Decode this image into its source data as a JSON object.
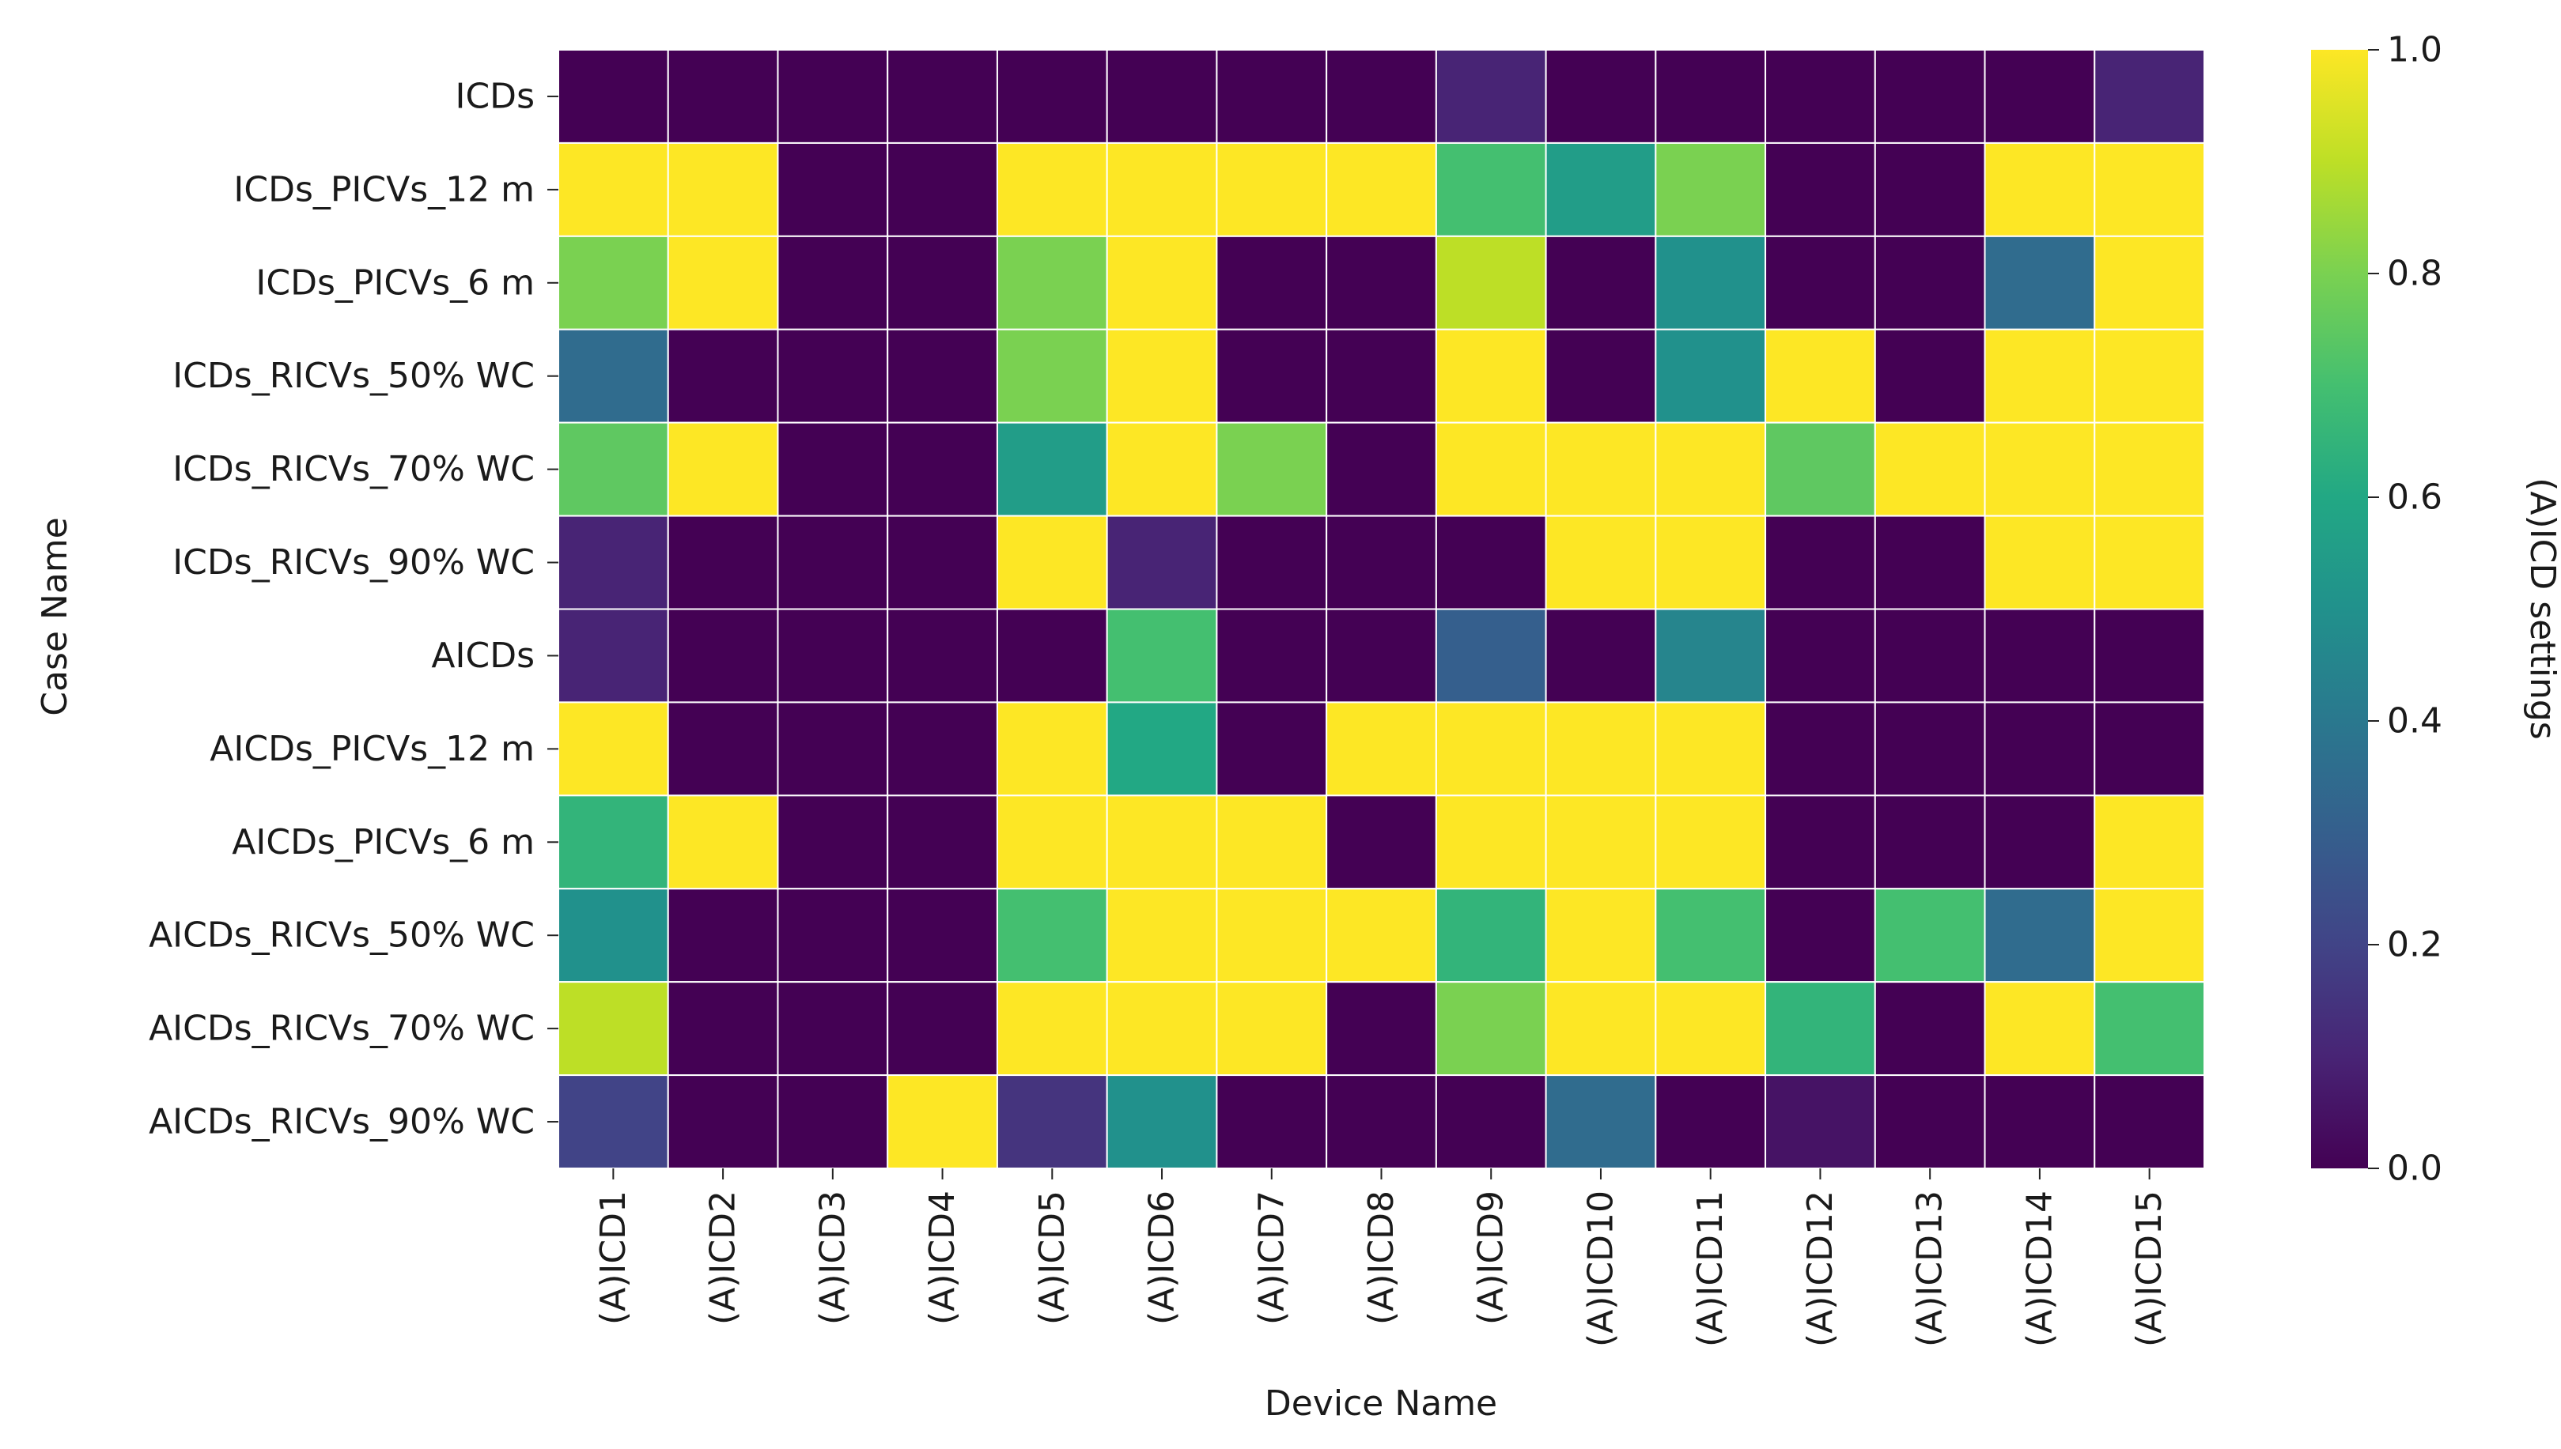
{
  "chart_data": {
    "type": "heatmap",
    "title": "",
    "xlabel": "Device Name",
    "ylabel": "Case Name",
    "x_categories": [
      "(A)ICD1",
      "(A)ICD2",
      "(A)ICD3",
      "(A)ICD4",
      "(A)ICD5",
      "(A)ICD6",
      "(A)ICD7",
      "(A)ICD8",
      "(A)ICD9",
      "(A)ICD10",
      "(A)ICD11",
      "(A)ICD12",
      "(A)ICD13",
      "(A)ICD14",
      "(A)ICD15"
    ],
    "y_categories": [
      "ICDs",
      "ICDs_PICVs_12 m",
      "ICDs_PICVs_6 m",
      "ICDs_RICVs_50% WC",
      "ICDs_RICVs_70% WC",
      "ICDs_RICVs_90% WC",
      "AICDs",
      "AICDs_PICVs_12 m",
      "AICDs_PICVs_6 m",
      "AICDs_RICVs_50% WC",
      "AICDs_RICVs_70% WC",
      "AICDs_RICVs_90% WC"
    ],
    "values": [
      [
        0,
        0,
        0,
        0,
        0,
        0,
        0,
        0,
        0.1,
        0,
        0,
        0,
        0,
        0,
        0.1
      ],
      [
        1,
        1,
        0,
        0,
        1,
        1,
        1,
        1,
        0.7,
        0.55,
        0.8,
        0,
        0,
        1,
        1
      ],
      [
        0.8,
        1,
        0,
        0,
        0.8,
        1,
        0,
        0,
        0.9,
        0,
        0.5,
        0,
        0,
        0.35,
        1
      ],
      [
        0.35,
        0,
        0,
        0,
        0.8,
        1,
        0,
        0,
        1,
        0,
        0.5,
        1,
        0,
        1,
        1
      ],
      [
        0.75,
        1,
        0,
        0,
        0.55,
        1,
        0.8,
        0,
        1,
        1,
        1,
        0.75,
        1,
        1,
        1
      ],
      [
        0.1,
        0,
        0,
        0,
        1,
        0.1,
        0,
        0,
        0,
        1,
        1,
        0,
        0,
        1,
        1
      ],
      [
        0.1,
        0,
        0,
        0,
        0,
        0.7,
        0,
        0,
        0.3,
        0,
        0.45,
        0,
        0,
        0,
        0
      ],
      [
        1,
        0,
        0,
        0,
        1,
        0.6,
        0,
        1,
        1,
        1,
        1,
        0,
        0,
        0,
        0
      ],
      [
        0.65,
        1,
        0,
        0,
        1,
        1,
        1,
        0,
        1,
        1,
        1,
        0,
        0,
        0,
        1
      ],
      [
        0.5,
        0,
        0,
        0,
        0.7,
        1,
        1,
        1,
        0.65,
        1,
        0.7,
        0,
        0.7,
        0.35,
        1
      ],
      [
        0.9,
        0,
        0,
        0,
        1,
        1,
        1,
        0,
        0.8,
        1,
        1,
        0.65,
        0,
        1,
        0.7
      ],
      [
        0.2,
        0,
        0,
        1,
        0.15,
        0.5,
        0,
        0,
        0,
        0.35,
        0,
        0.05,
        0,
        0,
        0
      ]
    ],
    "colormap": "viridis",
    "vmin": 0.0,
    "vmax": 1.0,
    "colorbar_label": "(A)ICD settings",
    "colorbar_ticks": [
      "0.0",
      "0.2",
      "0.4",
      "0.6",
      "0.8",
      "1.0"
    ],
    "legend_position": "right"
  }
}
